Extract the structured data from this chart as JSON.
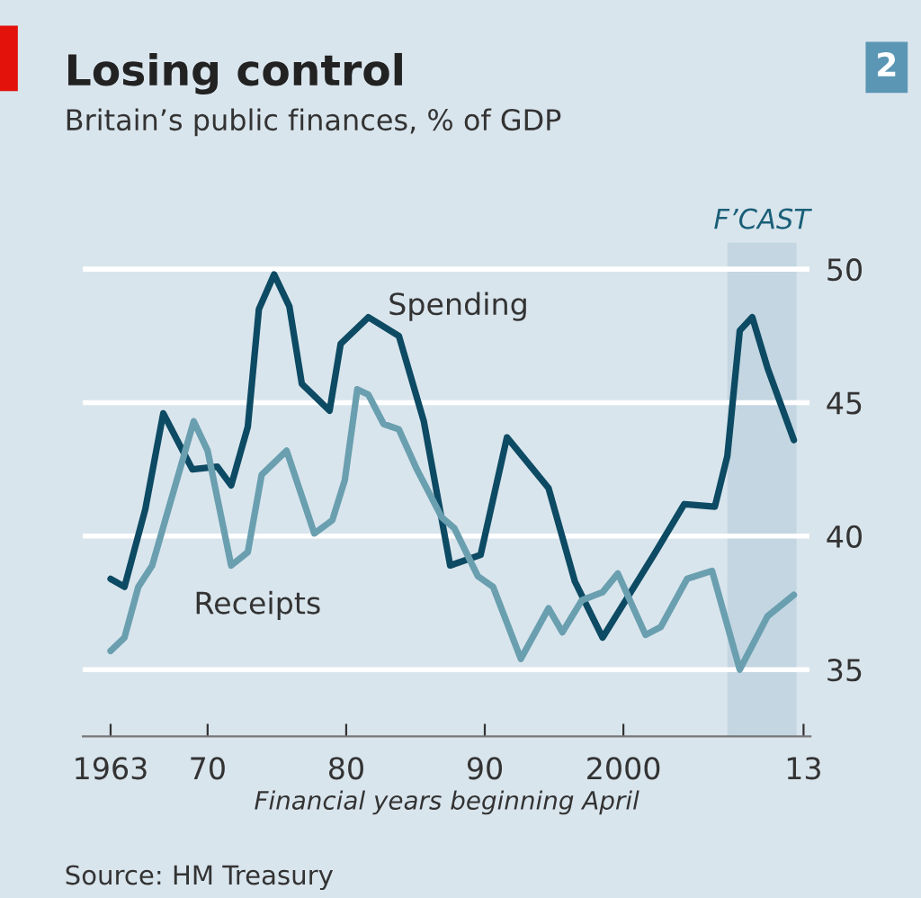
{
  "chart_data": {
    "type": "line",
    "title": "Losing control",
    "subtitle": "Britain’s public finances, % of GDP",
    "xlabel": "Financial years beginning April",
    "annotations": [
      "Source: HM Treasury",
      "2"
    ],
    "series": [
      {
        "name": "Spending",
        "color": "#0d4a63",
        "x": [
          1963,
          1964,
          1965.5,
          1966.8,
          1968.9,
          1970.7,
          1971.7,
          1972.9,
          1973.7,
          1974.8,
          1975.9,
          1976.8,
          1978.8,
          1979.6,
          1981.6,
          1983.8,
          1985.6,
          1987.5,
          1989.7,
          1991.6,
          1994.6,
          1996.5,
          1998.5,
          2002.2,
          2004.4,
          2006.6,
          2007.5,
          2008.4,
          2009.3,
          2010.4,
          2012.3
        ],
        "values": [
          38.4,
          38.1,
          41.0,
          44.6,
          42.5,
          42.6,
          41.9,
          44.1,
          48.5,
          49.8,
          48.6,
          45.7,
          44.7,
          47.2,
          48.2,
          47.5,
          44.3,
          38.9,
          39.3,
          43.7,
          41.8,
          38.3,
          36.2,
          39.3,
          41.2,
          41.1,
          43.0,
          47.7,
          48.2,
          46.3,
          43.6
        ]
      },
      {
        "name": "Receipts",
        "color": "#6a9fb0",
        "x": [
          1963,
          1964,
          1965,
          1966,
          1967,
          1969,
          1970,
          1971.7,
          1972.9,
          1973.9,
          1975.7,
          1977.7,
          1979,
          1979.9,
          1980.8,
          1981.6,
          1982.7,
          1983.8,
          1985.1,
          1986.9,
          1987.8,
          1989.5,
          1990.6,
          1992.6,
          1994.6,
          1995.6,
          1997,
          1998.5,
          1999.6,
          2001.6,
          2002.7,
          2004.6,
          2006.4,
          2008.4,
          2010.4,
          2012.3
        ],
        "values": [
          35.7,
          36.2,
          38.1,
          38.9,
          40.7,
          44.3,
          43.2,
          38.9,
          39.4,
          42.3,
          43.2,
          40.1,
          40.6,
          42.1,
          45.5,
          45.3,
          44.2,
          44.0,
          42.5,
          40.7,
          40.3,
          38.5,
          38.1,
          35.4,
          37.3,
          36.4,
          37.6,
          37.9,
          38.6,
          36.3,
          36.6,
          38.4,
          38.7,
          35.0,
          37.0,
          37.8
        ]
      }
    ],
    "bands": [
      {
        "axis": "x",
        "from": 2007.5,
        "to": 2012.5,
        "label": "F’CAST",
        "color": "#c3d6e1"
      }
    ],
    "xlim": [
      1961,
      2013.5
    ],
    "xticks": [
      {
        "value": 1963,
        "label": "1963"
      },
      {
        "value": 1970,
        "label": "70"
      },
      {
        "value": 1980,
        "label": "80"
      },
      {
        "value": 1990,
        "label": "90"
      },
      {
        "value": 2000,
        "label": "2000"
      },
      {
        "value": 2013,
        "label": "13"
      }
    ],
    "ylim": [
      32.5,
      51
    ],
    "yticks": [
      35,
      40,
      45,
      50
    ],
    "grid": "y",
    "legend": false
  }
}
